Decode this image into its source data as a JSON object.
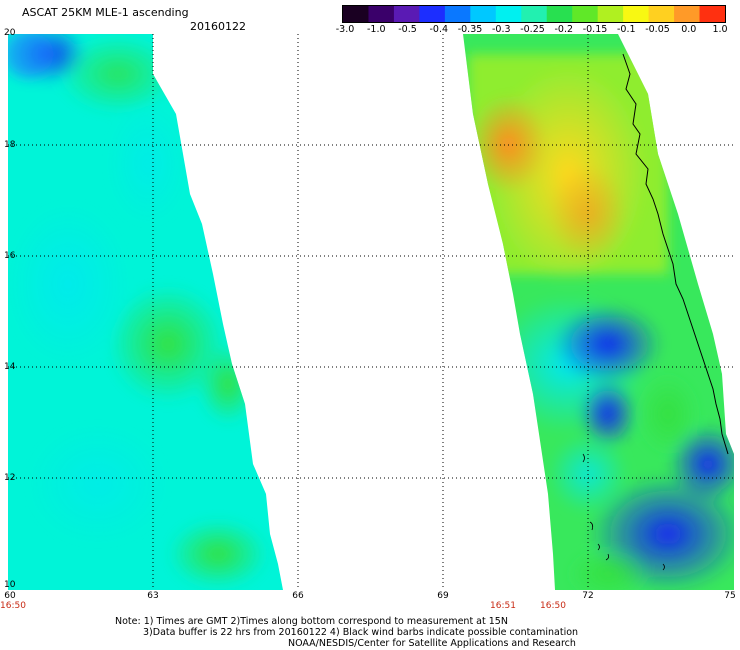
{
  "header": {
    "title": "ASCAT 25KM MLE-1 ascending",
    "date": "20160122"
  },
  "colorbar": {
    "colors": [
      "#1a0022",
      "#3a006a",
      "#5a1ab4",
      "#1c2eff",
      "#0a78ff",
      "#00c8ff",
      "#00f0f0",
      "#22f0b0",
      "#28e050",
      "#60e828",
      "#b0f020",
      "#f8f812",
      "#ffd020",
      "#ff9a28",
      "#ff3010"
    ],
    "labels": [
      "-3.0",
      "-1.0",
      "-0.5",
      "-0.4",
      "-0.35",
      "-0.3",
      "-0.25",
      "-0.2",
      "-0.15",
      "-0.1",
      "-0.05",
      "0.0",
      "1.0"
    ]
  },
  "axes": {
    "lat_labels": [
      "20",
      "18",
      "16",
      "14",
      "12",
      "10"
    ],
    "lon_labels": [
      "60",
      "63",
      "66",
      "69",
      "72",
      "75"
    ]
  },
  "times": {
    "t1": "16:50",
    "t2": "16:51",
    "t3": "16:50"
  },
  "notes": {
    "line1": "Note: 1) Times are GMT 2)Times along bottom correspond to measurement at 15N",
    "line2": "3)Data buffer is 22 hrs from 20160122 4) Black wind barbs indicate possible contamination",
    "line3": "NOAA/NESDIS/Center for Satellite Applications and Research"
  }
}
